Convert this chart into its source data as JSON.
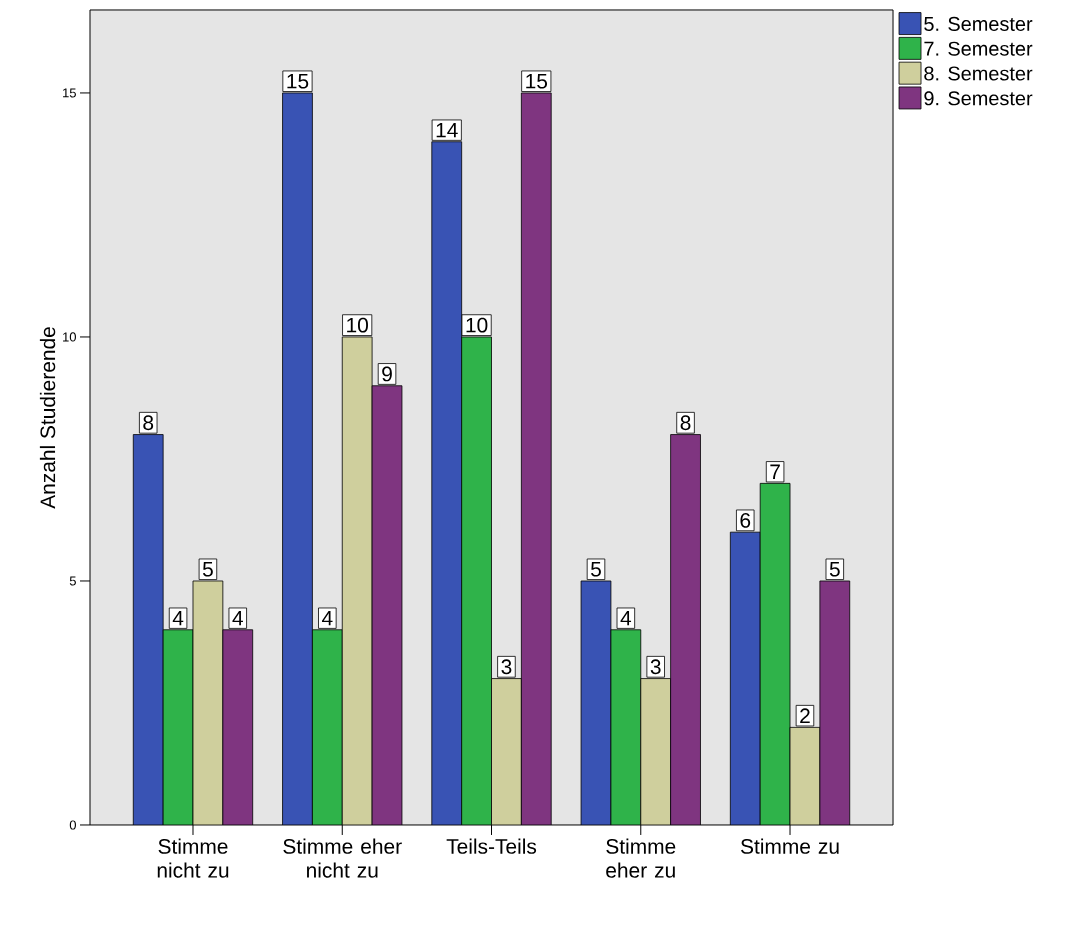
{
  "chart_data": {
    "type": "bar",
    "ylabel": "Anzahl Studierende",
    "categories": [
      "Stimme nicht zu",
      "Stimme eher nicht zu",
      "Teils-Teils",
      "Stimme eher zu",
      "Stimme zu"
    ],
    "series": [
      {
        "name": "5. Semester",
        "color": "#3953b4",
        "values": [
          8,
          15,
          14,
          5,
          6
        ]
      },
      {
        "name": "7. Semester",
        "color": "#2fb34a",
        "values": [
          4,
          4,
          10,
          4,
          7
        ]
      },
      {
        "name": "8. Semester",
        "color": "#cfcf9d",
        "values": [
          5,
          10,
          3,
          3,
          2
        ]
      },
      {
        "name": "9. Semester",
        "color": "#7f3580",
        "values": [
          4,
          9,
          15,
          8,
          5
        ]
      }
    ],
    "ylim": [
      0,
      16.7
    ],
    "yticks": [
      0,
      5,
      10,
      15
    ],
    "grid": false,
    "legend": "top right",
    "data_labels": true
  }
}
